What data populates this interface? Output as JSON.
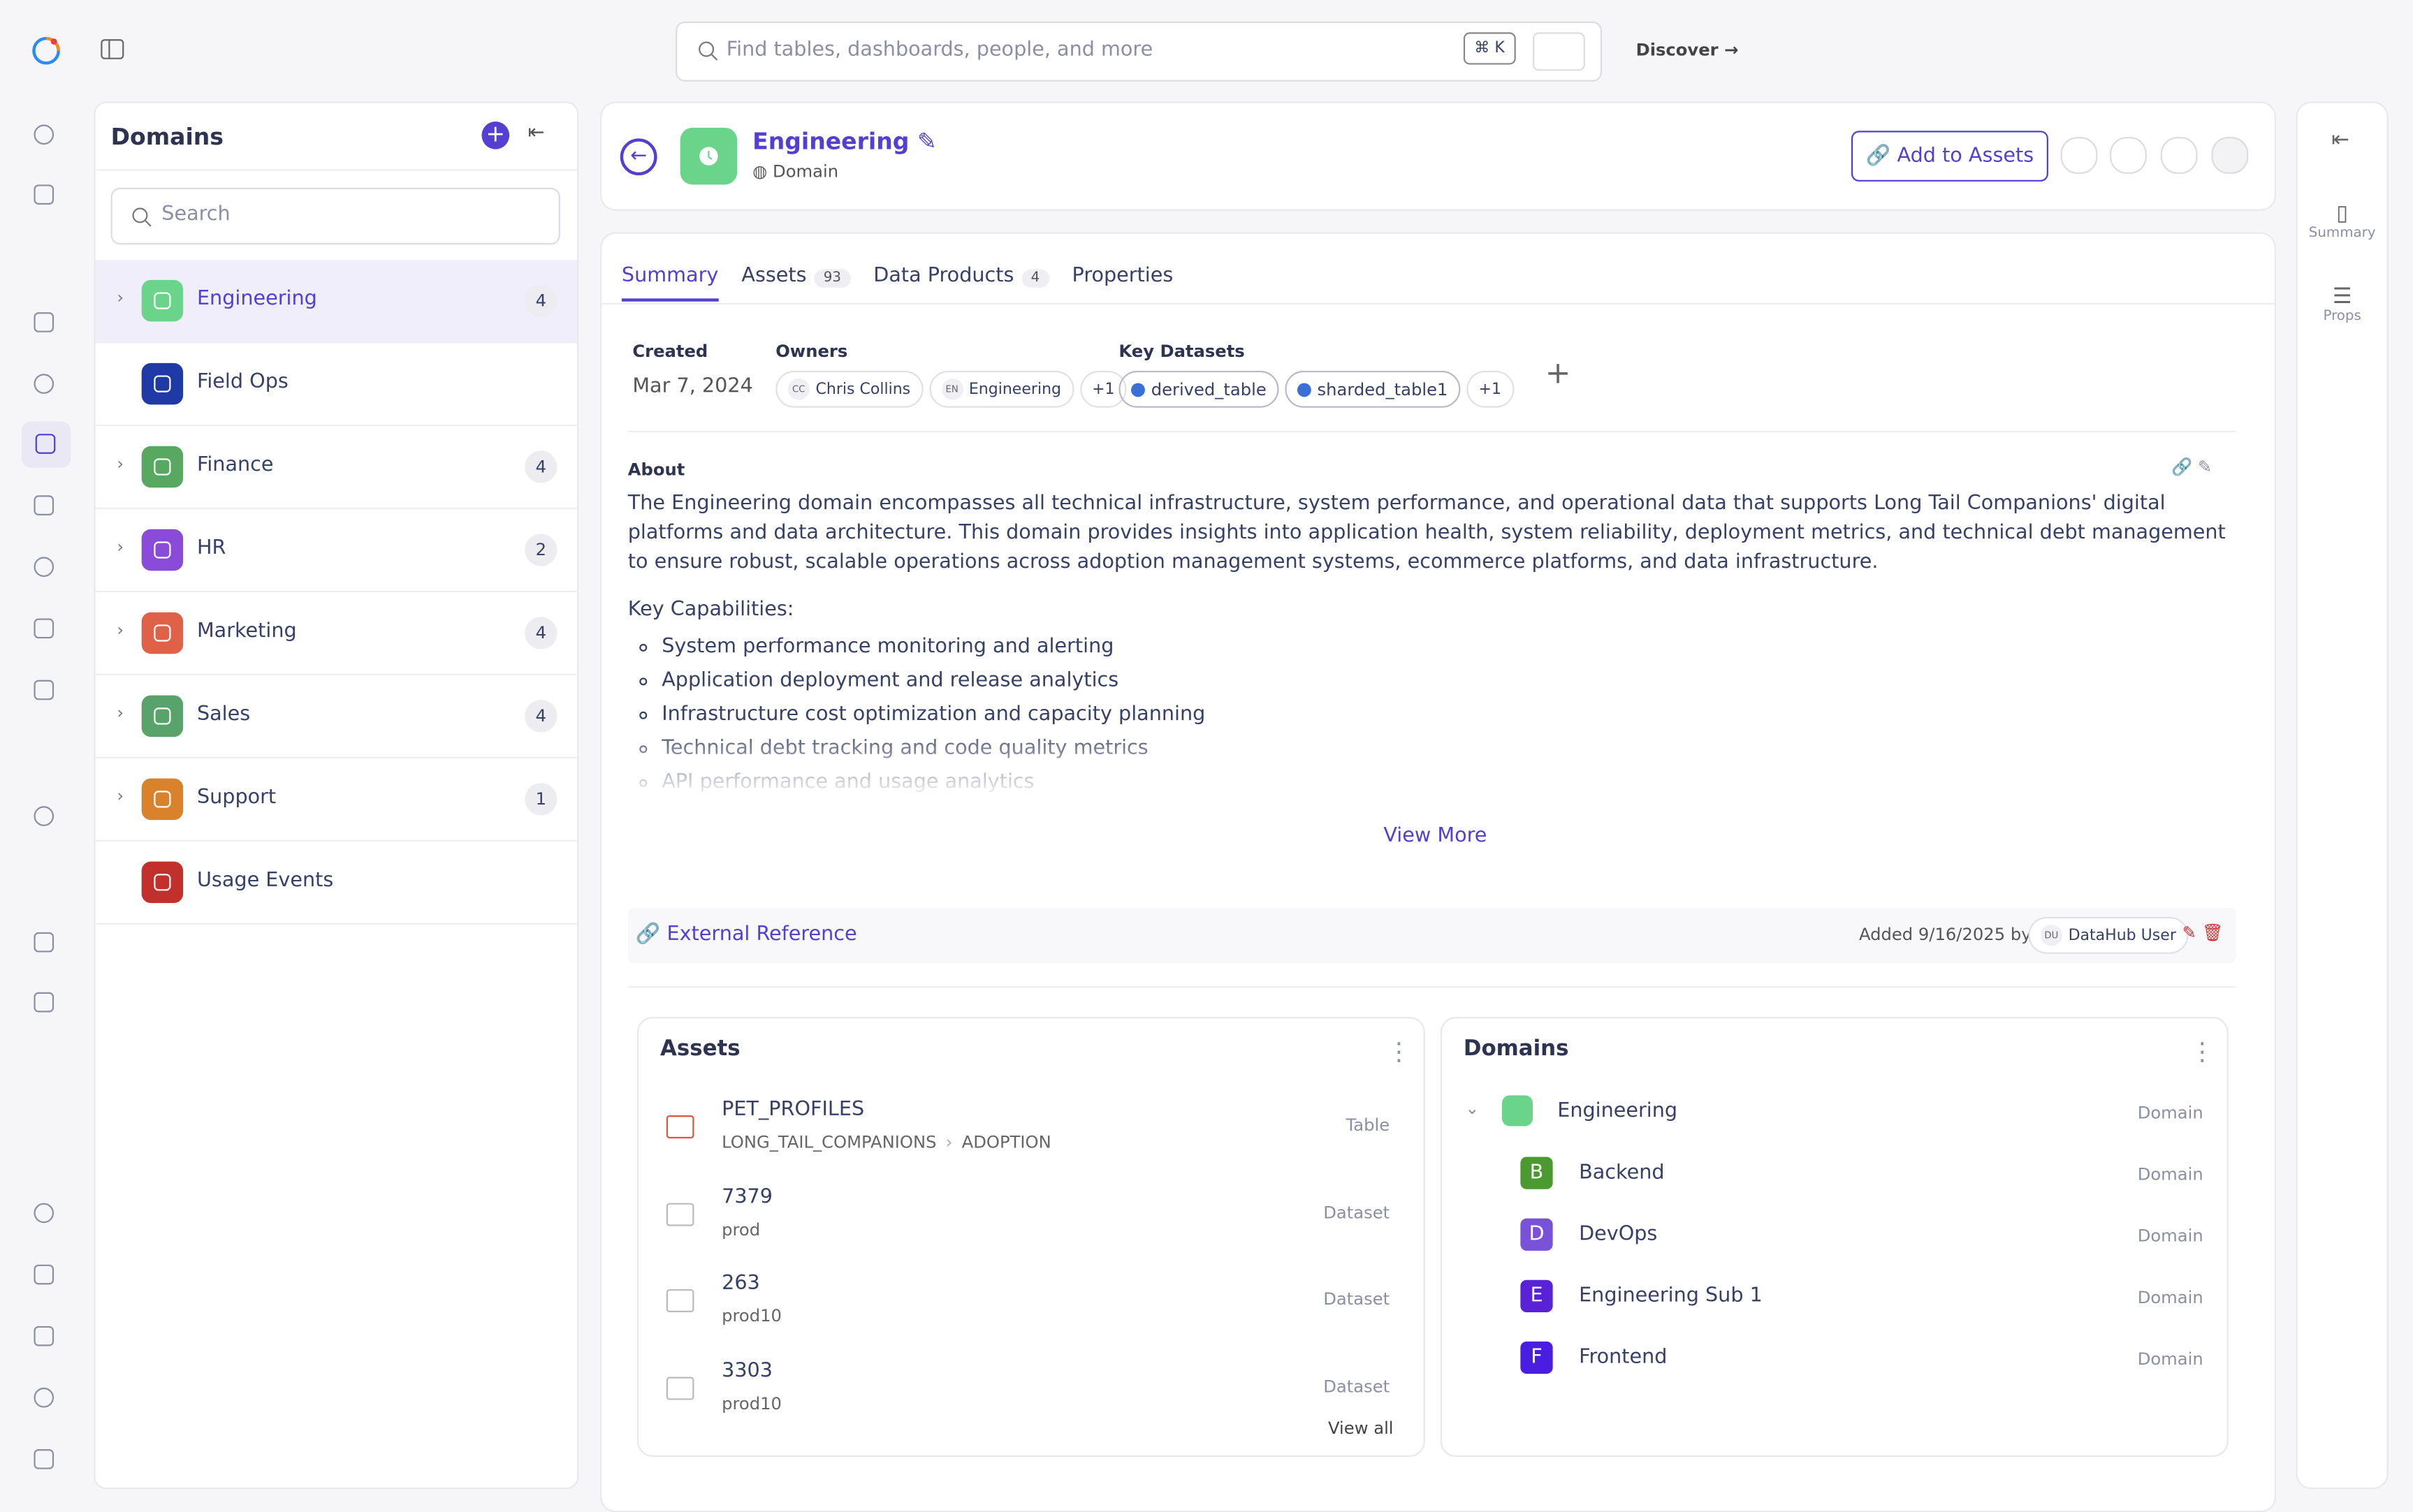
{
  "topbar": {
    "search_placeholder": "Find tables, dashboards, people, and more",
    "shortcut": "⌘ K",
    "discover": "Discover"
  },
  "sidebar": {
    "title": "Domains",
    "search_placeholder": "Search",
    "items": [
      {
        "name": "Engineering",
        "count": 4,
        "color": "#6ad58a",
        "selected": true
      },
      {
        "name": "Field Ops",
        "color": "#1f3aa6"
      },
      {
        "name": "Finance",
        "count": 4,
        "color": "#58a862"
      },
      {
        "name": "HR",
        "count": 2,
        "color": "#8a4cd8"
      },
      {
        "name": "Marketing",
        "count": 4,
        "color": "#df6147"
      },
      {
        "name": "Sales",
        "count": 4,
        "color": "#58a26b"
      },
      {
        "name": "Support",
        "count": 1,
        "color": "#d9822b"
      },
      {
        "name": "Usage Events",
        "color": "#c2302b"
      }
    ]
  },
  "header": {
    "name": "Engineering",
    "type": "Domain",
    "add_button": "Add to Assets"
  },
  "tabs": [
    {
      "label": "Summary",
      "active": true
    },
    {
      "label": "Assets",
      "count": 93
    },
    {
      "label": "Data Products",
      "count": 4
    },
    {
      "label": "Properties"
    }
  ],
  "summary": {
    "created_label": "Created",
    "created": "Mar 7, 2024",
    "owners_label": "Owners",
    "owners": [
      {
        "initials": "CC",
        "name": "Chris Collins"
      },
      {
        "initials": "EN",
        "name": "Engineering"
      }
    ],
    "owners_more": "+1",
    "datasets_label": "Key Datasets",
    "datasets": [
      "derived_table",
      "sharded_table1"
    ],
    "datasets_more": "+1"
  },
  "about": {
    "label": "About",
    "text": "The Engineering domain encompasses all technical infrastructure, system performance, and operational data that supports Long Tail Companions' digital platforms and data architecture. This domain provides insights into application health, system reliability, deployment metrics, and technical debt management to ensure robust, scalable operations across adoption management systems, ecommerce platforms, and data infrastructure.",
    "heading": "Key Capabilities:",
    "items": [
      "System performance monitoring and alerting",
      "Application deployment and release analytics",
      "Infrastructure cost optimization and capacity planning",
      "Technical debt tracking and code quality metrics",
      "API performance and usage analytics"
    ],
    "view_more": "View More"
  },
  "external": {
    "label": "External Reference",
    "added": "Added 9/16/2025 by",
    "user_initials": "DU",
    "user": "DataHub User"
  },
  "assets_card": {
    "title": "Assets",
    "items": [
      {
        "name": "PET_PROFILES",
        "path": [
          "LONG_TAIL_COMPANIONS",
          "ADOPTION"
        ],
        "type": "Table"
      },
      {
        "name": "7379",
        "sub": "prod",
        "type": "Dataset"
      },
      {
        "name": "263",
        "sub": "prod10",
        "type": "Dataset"
      },
      {
        "name": "3303",
        "sub": "prod10",
        "type": "Dataset"
      }
    ],
    "view_all": "View all"
  },
  "domains_card": {
    "title": "Domains",
    "root": {
      "name": "Engineering",
      "type": "Domain"
    },
    "children": [
      {
        "letter": "B",
        "name": "Backend",
        "type": "Domain",
        "color": "#4a9a2f"
      },
      {
        "letter": "D",
        "name": "DevOps",
        "type": "Domain",
        "color": "#7a52d9"
      },
      {
        "letter": "E",
        "name": "Engineering Sub 1",
        "type": "Domain",
        "color": "#5a22d6"
      },
      {
        "letter": "F",
        "name": "Frontend",
        "type": "Domain",
        "color": "#4a1ee0"
      }
    ]
  },
  "rail": {
    "summary": "Summary",
    "props": "Props"
  }
}
